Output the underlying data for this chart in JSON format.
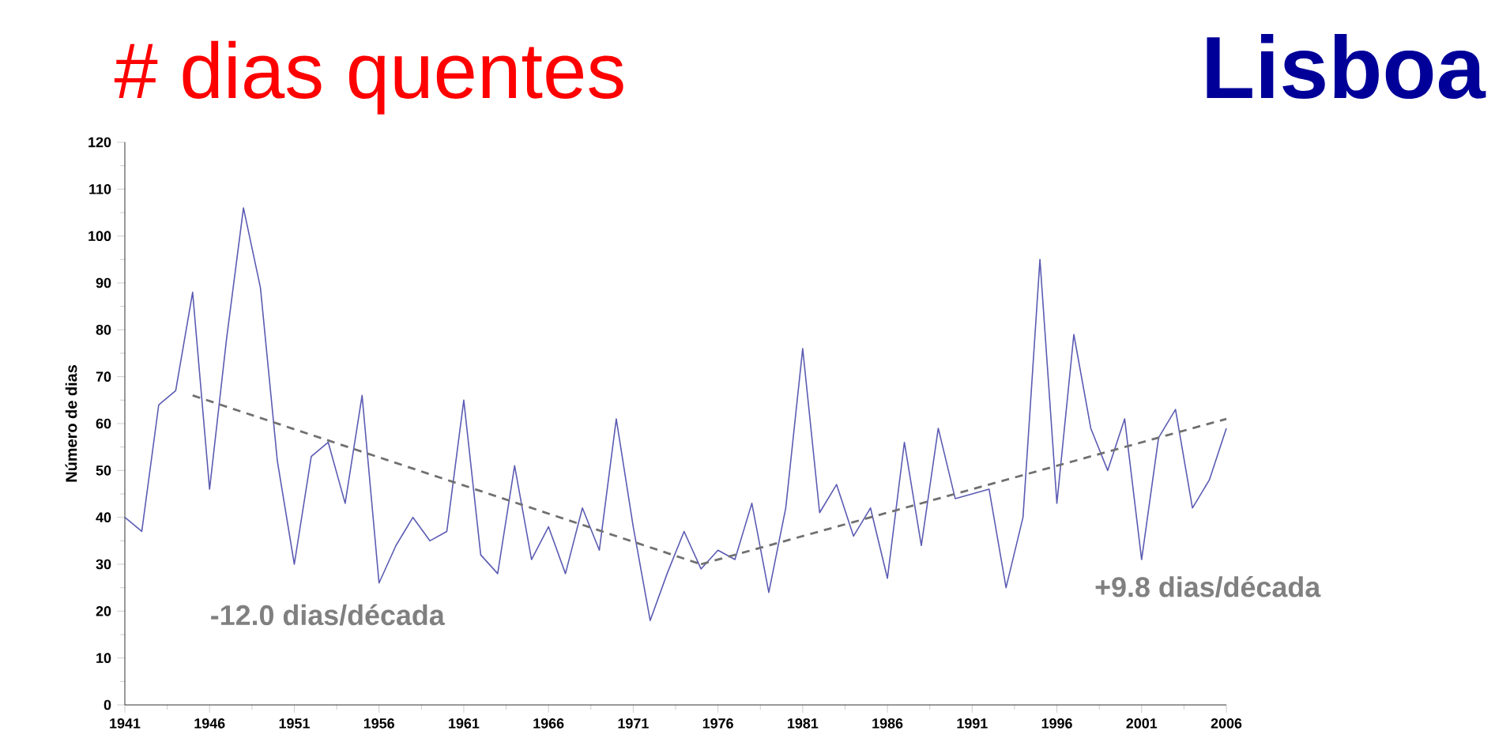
{
  "chart_data": {
    "type": "line",
    "title": "# dias quentes",
    "subtitle": "Lisboa",
    "ylabel": "Número de dias",
    "x": [
      1941,
      1942,
      1943,
      1944,
      1945,
      1946,
      1947,
      1948,
      1949,
      1950,
      1951,
      1952,
      1953,
      1954,
      1955,
      1956,
      1957,
      1958,
      1959,
      1960,
      1961,
      1962,
      1963,
      1964,
      1965,
      1966,
      1967,
      1968,
      1969,
      1970,
      1971,
      1972,
      1973,
      1974,
      1975,
      1976,
      1977,
      1978,
      1979,
      1980,
      1981,
      1982,
      1983,
      1984,
      1985,
      1986,
      1987,
      1988,
      1989,
      1990,
      1991,
      1992,
      1993,
      1994,
      1995,
      1996,
      1997,
      1998,
      1999,
      2000,
      2001,
      2002,
      2003,
      2004,
      2005,
      2006
    ],
    "xlim": [
      1941,
      2006
    ],
    "xticks": [
      1941,
      1946,
      1951,
      1956,
      1961,
      1966,
      1971,
      1976,
      1981,
      1986,
      1991,
      1996,
      2001,
      2006
    ],
    "ylim": [
      0,
      120
    ],
    "yticks": [
      0,
      10,
      20,
      30,
      40,
      50,
      60,
      70,
      80,
      90,
      100,
      110,
      120
    ],
    "series": [
      {
        "color": "#5b5bb3",
        "values": [
          40,
          37,
          64,
          67,
          88,
          46,
          78,
          106,
          89,
          52,
          30,
          53,
          56,
          43,
          66,
          26,
          34,
          40,
          35,
          37,
          65,
          32,
          28,
          51,
          31,
          38,
          28,
          42,
          33,
          61,
          38,
          18,
          28,
          37,
          29,
          33,
          31,
          43,
          24,
          42,
          76,
          41,
          47,
          36,
          42,
          27,
          56,
          34,
          59,
          44,
          45,
          46,
          25,
          40,
          95,
          43,
          79,
          59,
          50,
          61,
          31,
          57,
          63,
          42,
          48,
          59
        ]
      },
      {
        "type": "line",
        "color": "#707070",
        "line_style": "dashed",
        "x": [
          1945,
          1975
        ],
        "values": [
          66,
          30
        ]
      },
      {
        "type": "line",
        "color": "#707070",
        "line_style": "dashed",
        "x": [
          1975,
          2006
        ],
        "values": [
          30,
          61
        ]
      }
    ],
    "marker": "none",
    "line_style": "solid",
    "grid": false,
    "annotations": [
      "-12.0 dias/década",
      "+9.8 dias/década"
    ]
  }
}
